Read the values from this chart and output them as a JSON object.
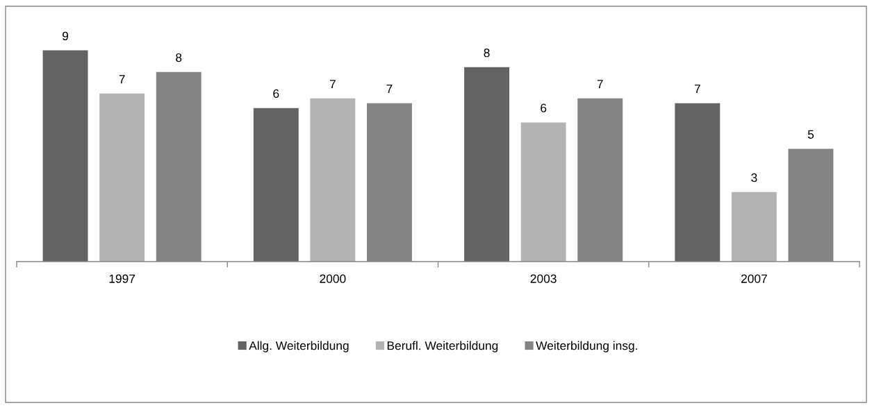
{
  "chart_data": {
    "type": "bar",
    "categories": [
      "1997",
      "2000",
      "2003",
      "2007"
    ],
    "series": [
      {
        "name": "Allg. Weiterbildung",
        "color": "#636363",
        "values": [
          8.8,
          6.4,
          8.1,
          6.6
        ],
        "value_labels": [
          "9",
          "6",
          "8",
          "7"
        ]
      },
      {
        "name": "Berufl. Weiterbildung",
        "color": "#b3b3b3",
        "values": [
          7.0,
          6.8,
          5.8,
          2.9
        ],
        "value_labels": [
          "7",
          "7",
          "6",
          "3"
        ]
      },
      {
        "name": "Weiterbildung insg.",
        "color": "#838383",
        "values": [
          7.9,
          6.6,
          6.8,
          4.7
        ],
        "value_labels": [
          "8",
          "7",
          "7",
          "5"
        ]
      }
    ],
    "grid": false,
    "legend": "bottom"
  }
}
